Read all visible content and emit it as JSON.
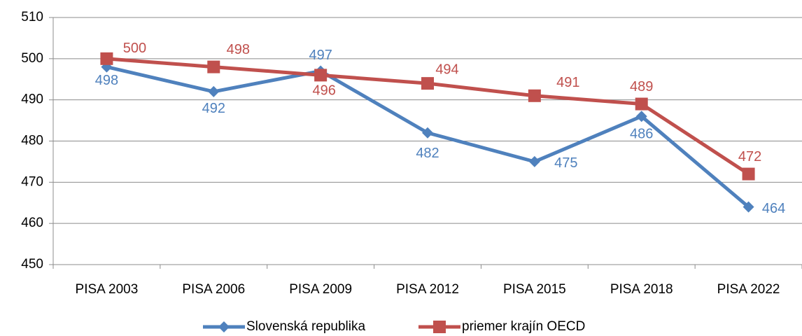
{
  "chart_data": {
    "type": "line",
    "categories": [
      "PISA 2003",
      "PISA 2006",
      "PISA 2009",
      "PISA 2012",
      "PISA 2015",
      "PISA 2018",
      "PISA 2022"
    ],
    "series": [
      {
        "name": "Slovenská republika",
        "color": "#4f81bd",
        "marker": "diamond",
        "values": [
          498,
          492,
          497,
          482,
          475,
          486,
          464
        ]
      },
      {
        "name": "priemer krajín OECD",
        "color": "#c0504d",
        "marker": "square",
        "values": [
          500,
          498,
          496,
          494,
          491,
          489,
          472
        ]
      }
    ],
    "ylim": [
      450,
      510
    ],
    "yticks": [
      450,
      460,
      470,
      480,
      490,
      500,
      510
    ],
    "grid": true,
    "legend": "bottom"
  }
}
